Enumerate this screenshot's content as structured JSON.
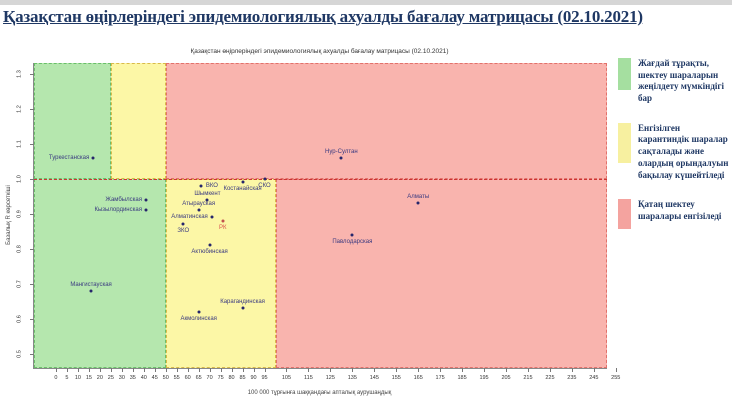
{
  "page": {
    "title": "Қазақстан өңірлеріндегі эпидемиологиялық ахуалды бағалау матрицасы  (02.10.2021)"
  },
  "chart": {
    "title": "Қазақстан өңірлеріндегі эпидемиологиялық ахуалды бағалау матрицасы (02.10.2021)",
    "xlabel": "100 000 тұрғынға шаққандағы апталық аурушаңдық",
    "ylabel": "Базалық R көрсеткіші"
  },
  "colors": {
    "title_navy": "#1f3864",
    "point_dot": "#26266b",
    "point_label": "#3a3a80",
    "rk_red": "#d9534f",
    "threshold_red": "#cc3333",
    "zone_green": "#b5e7ae",
    "zone_yellow": "#fcf7a6",
    "zone_red": "#f9b4ae"
  },
  "chart_data": {
    "type": "scatter",
    "title": "Қазақстан өңірлеріндегі эпидемиологиялық ахуалды бағалау матрицасы (02.10.2021)",
    "xlabel": "100 000 тұрғынға шаққандағы апталық аурушаңдық",
    "ylabel": "Базалық R көрсеткіші",
    "x_domain": [
      -10,
      251
    ],
    "y_domain": [
      0.46,
      1.33
    ],
    "x_ticks": [
      0,
      5,
      10,
      15,
      20,
      25,
      30,
      35,
      40,
      45,
      50,
      55,
      60,
      65,
      70,
      75,
      80,
      85,
      90,
      95,
      105,
      115,
      125,
      135,
      145,
      155,
      165,
      175,
      185,
      195,
      205,
      215,
      225,
      235,
      245,
      255
    ],
    "y_ticks": [
      0.5,
      0.6,
      0.7,
      0.8,
      0.9,
      1.0,
      1.1,
      1.2,
      1.3
    ],
    "threshold_r": 1.0,
    "grid": false,
    "legend_position": "right",
    "zones": [
      {
        "name": "green-top",
        "x": [
          -10,
          25
        ],
        "y": [
          1.0,
          1.33
        ],
        "fill": "#b5e7ae",
        "border": "#6abf69"
      },
      {
        "name": "yellow-top",
        "x": [
          25,
          50
        ],
        "y": [
          1.0,
          1.33
        ],
        "fill": "#fcf7a6",
        "border": "#d8b94a"
      },
      {
        "name": "red-top",
        "x": [
          50,
          251
        ],
        "y": [
          1.0,
          1.33
        ],
        "fill": "#f9b4ae",
        "border": "#e2716b"
      },
      {
        "name": "green-bottom",
        "x": [
          -10,
          50
        ],
        "y": [
          0.46,
          1.0
        ],
        "fill": "#b5e7ae",
        "border": "#6abf69"
      },
      {
        "name": "yellow-bottom",
        "x": [
          50,
          100
        ],
        "y": [
          0.46,
          1.0
        ],
        "fill": "#fcf7a6",
        "border": "#d8b94a"
      },
      {
        "name": "red-bottom",
        "x": [
          100,
          251
        ],
        "y": [
          0.46,
          1.0
        ],
        "fill": "#f9b4ae",
        "border": "#e2716b"
      }
    ],
    "points": [
      {
        "name": "Туркестанская",
        "x": 17,
        "r": 1.06,
        "label_pos": "left"
      },
      {
        "name": "Жамбылская",
        "x": 41,
        "r": 0.94,
        "label_pos": "left"
      },
      {
        "name": "Кызылординская",
        "x": 41,
        "r": 0.91,
        "label_pos": "left"
      },
      {
        "name": "Мангистауская",
        "x": 16,
        "r": 0.68,
        "label_pos": "above"
      },
      {
        "name": "ВКО",
        "x": 66,
        "r": 0.98,
        "label_pos": "right"
      },
      {
        "name": "СКО",
        "x": 95,
        "r": 1.0,
        "label_pos": "below"
      },
      {
        "name": "Костанайская",
        "x": 85,
        "r": 0.99,
        "label_pos": "below"
      },
      {
        "name": "Шымкент",
        "x": 69,
        "r": 0.94,
        "label_pos": "above"
      },
      {
        "name": "Атырауская",
        "x": 65,
        "r": 0.91,
        "label_pos": "above"
      },
      {
        "name": "Алматинская",
        "x": 71,
        "r": 0.89,
        "label_pos": "left"
      },
      {
        "name": "ЗКО",
        "x": 58,
        "r": 0.87,
        "label_pos": "below"
      },
      {
        "name": "РК",
        "x": 76,
        "r": 0.88,
        "label_pos": "below",
        "label_color": "#d9534f",
        "dot_color": "#c0504d"
      },
      {
        "name": "Актюбинская",
        "x": 70,
        "r": 0.81,
        "label_pos": "below"
      },
      {
        "name": "Акмолинская",
        "x": 65,
        "r": 0.62,
        "label_pos": "below"
      },
      {
        "name": "Карагандинская",
        "x": 85,
        "r": 0.63,
        "label_pos": "above"
      },
      {
        "name": "Нур-Султан",
        "x": 130,
        "r": 1.06,
        "label_pos": "above"
      },
      {
        "name": "Алматы",
        "x": 165,
        "r": 0.93,
        "label_pos": "above"
      },
      {
        "name": "Павлодарская",
        "x": 135,
        "r": 0.84,
        "label_pos": "below"
      }
    ]
  },
  "legend": {
    "items": [
      {
        "color": "#a5dfa0",
        "label": "Жағдай тұрақты, шектеу шараларын жеңілдету мүмкіндігі бар"
      },
      {
        "color": "#f7f0a0",
        "label": "Енгізілген карантиндік шаралар сақталады және олардың орындалуын бақылау күшейтіледі"
      },
      {
        "color": "#f4a39f",
        "label": "Қатаң шектеу шаралары енгізіледі"
      }
    ]
  }
}
